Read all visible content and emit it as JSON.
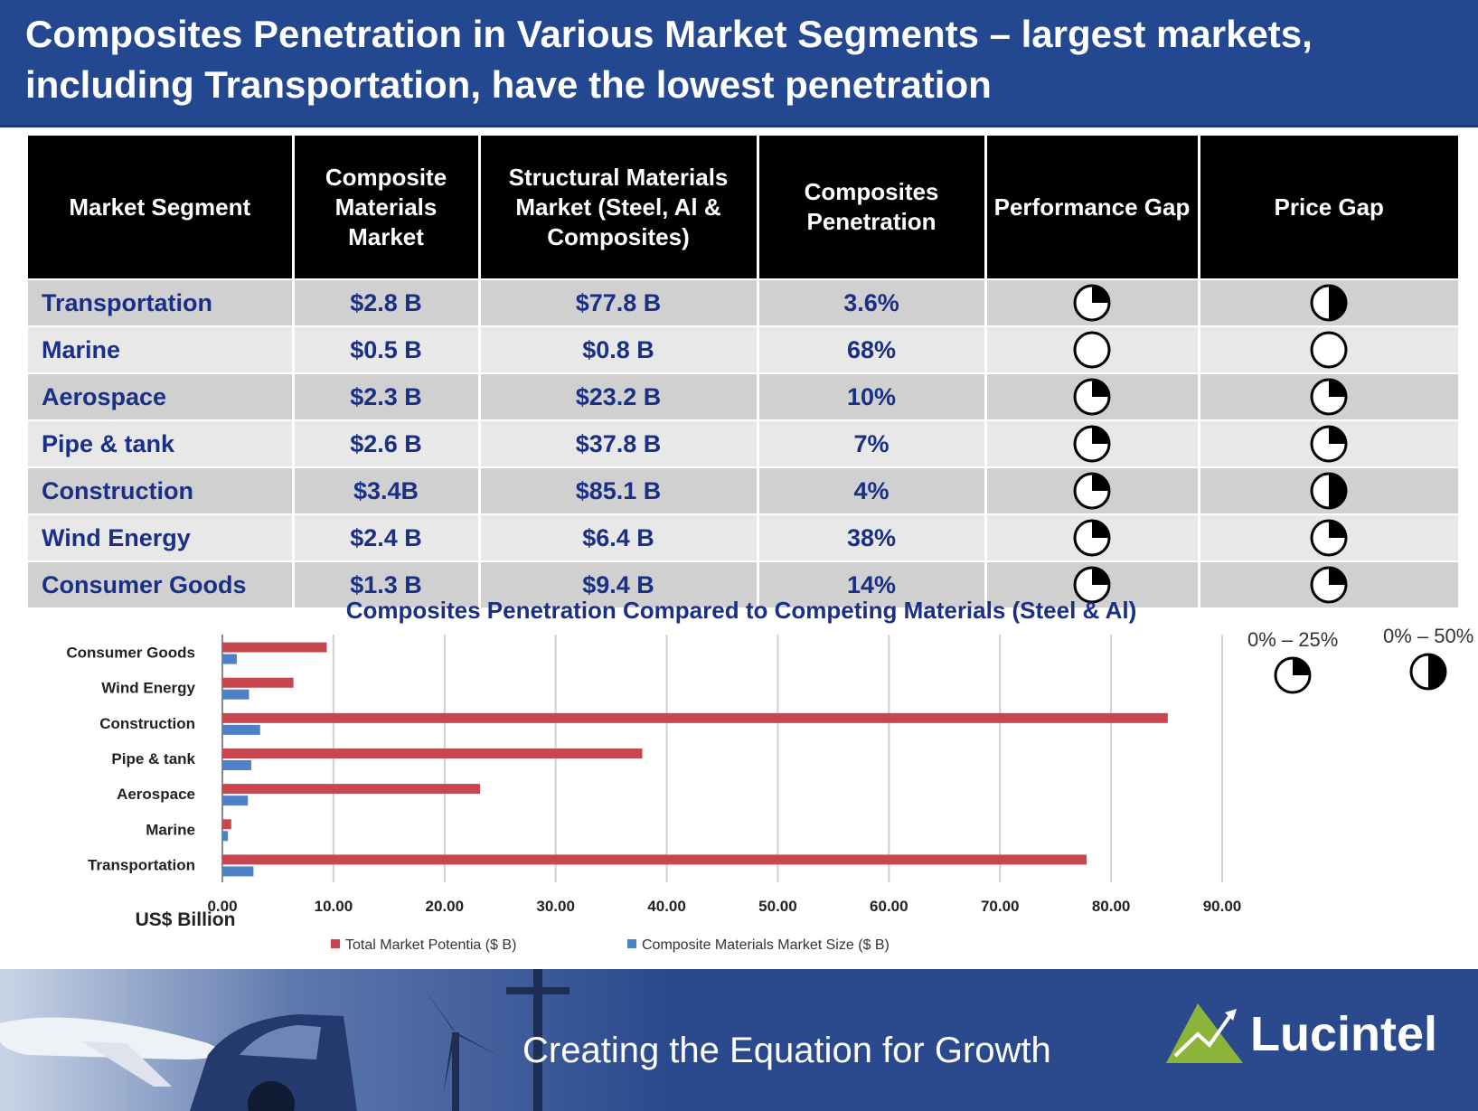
{
  "title": "Composites Penetration in Various  Market Segments – largest markets, including Transportation, have the lowest penetration",
  "table": {
    "headers": [
      "Market Segment",
      "Composite Materials Market",
      "Structural Materials Market (Steel, Al & Composites)",
      "Composites Penetration",
      "Performance Gap",
      "Price Gap"
    ],
    "rows": [
      {
        "segment": "Transportation",
        "composite": "$2.8 B",
        "structural": "$77.8 B",
        "penetration": "3.6%",
        "performance_gap": 0.25,
        "price_gap": 0.5
      },
      {
        "segment": "Marine",
        "composite": "$0.5 B",
        "structural": "$0.8 B",
        "penetration": "68%",
        "performance_gap": 0,
        "price_gap": 0
      },
      {
        "segment": "Aerospace",
        "composite": "$2.3 B",
        "structural": "$23.2 B",
        "penetration": "10%",
        "performance_gap": 0.25,
        "price_gap": 0.25
      },
      {
        "segment": "Pipe & tank",
        "composite": "$2.6 B",
        "structural": "$37.8 B",
        "penetration": "7%",
        "performance_gap": 0.25,
        "price_gap": 0.25
      },
      {
        "segment": "Construction",
        "composite": "$3.4B",
        "structural": "$85.1 B",
        "penetration": "4%",
        "performance_gap": 0.25,
        "price_gap": 0.5
      },
      {
        "segment": "Wind Energy",
        "composite": "$2.4 B",
        "structural": "$6.4 B",
        "penetration": "38%",
        "performance_gap": 0.25,
        "price_gap": 0.25
      },
      {
        "segment": "Consumer Goods",
        "composite": "$1.3 B",
        "structural": "$9.4 B",
        "penetration": "14%",
        "performance_gap": 0.25,
        "price_gap": 0.25
      }
    ]
  },
  "harvey_legend": [
    {
      "label": "0% – 25%",
      "fill": 0.25
    },
    {
      "label": "0% – 50%",
      "fill": 0.5
    }
  ],
  "chart_data": {
    "type": "bar",
    "orientation": "horizontal",
    "title": "Composites Penetration Compared to Competing Materials (Steel & Al)",
    "xlabel": "US$ Billion",
    "categories": [
      "Consumer Goods",
      "Wind Energy",
      "Construction",
      "Pipe & tank",
      "Aerospace",
      "Marine",
      "Transportation"
    ],
    "series": [
      {
        "name": "Total Market Potentia ($ B)",
        "color": "#c8474f",
        "values": [
          9.4,
          6.4,
          85.1,
          37.8,
          23.2,
          0.8,
          77.8
        ]
      },
      {
        "name": "Composite Materials Market Size ($ B)",
        "color": "#4f81c7",
        "values": [
          1.3,
          2.4,
          3.4,
          2.6,
          2.3,
          0.5,
          2.8
        ]
      }
    ],
    "xlim": [
      0,
      90
    ],
    "xticks": [
      "0.00",
      "10.00",
      "20.00",
      "30.00",
      "40.00",
      "50.00",
      "60.00",
      "70.00",
      "80.00",
      "90.00"
    ],
    "grid": true,
    "legend": "bottom"
  },
  "footer": {
    "tagline": "Creating the Equation for Growth",
    "brand": "Lucintel"
  },
  "colors": {
    "header_blue": "#24488f",
    "segment_text": "#1a2f86"
  }
}
